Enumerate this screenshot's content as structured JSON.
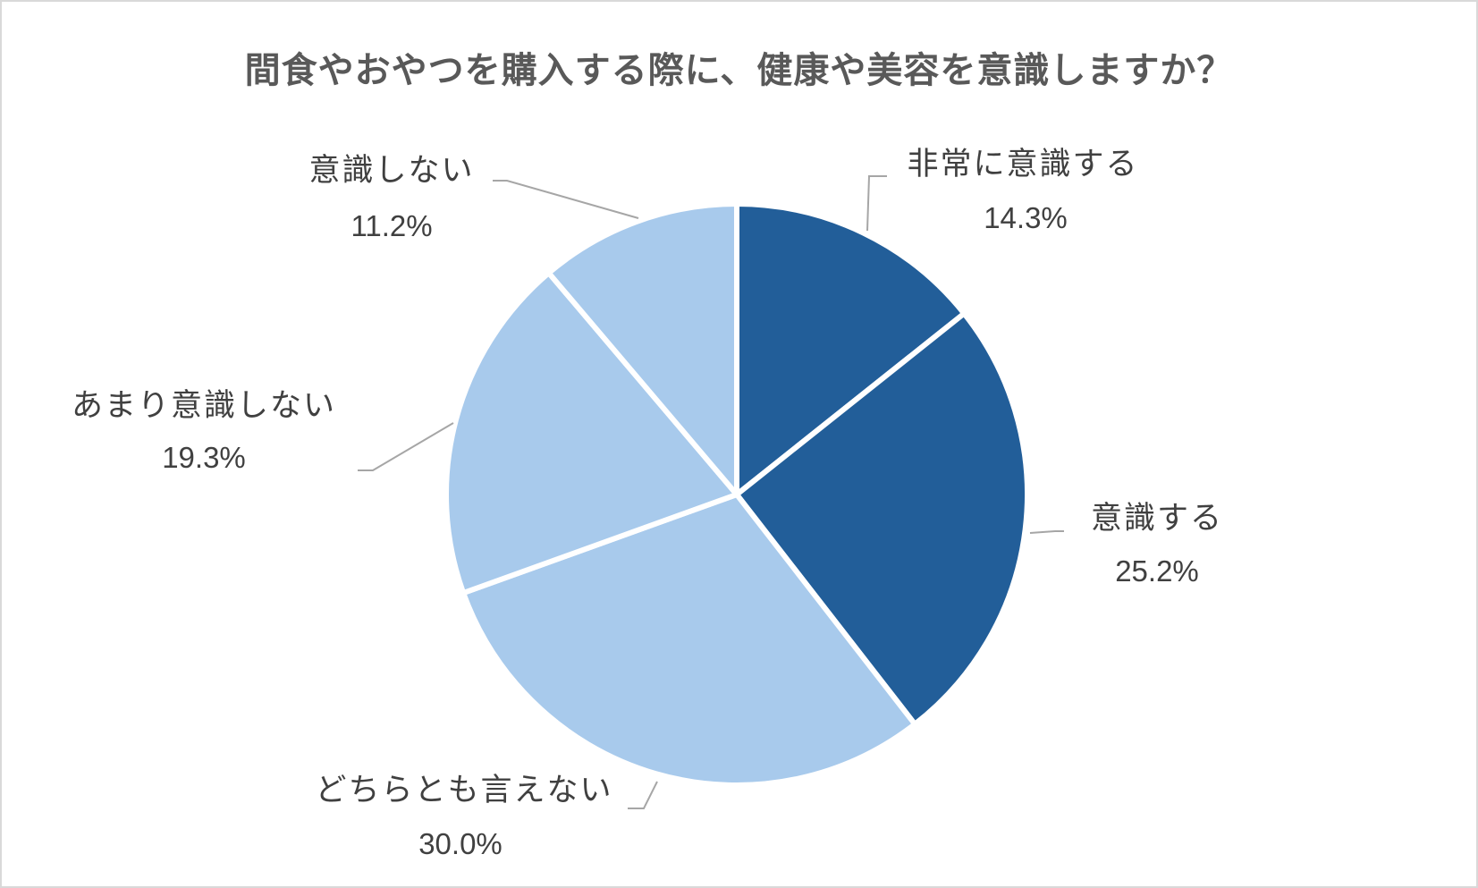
{
  "chart_data": {
    "type": "pie",
    "title": "間食やおやつを購入する際に、健康や美容を意識しますか？",
    "start_angle_deg": 0,
    "direction": "clockwise",
    "slices": [
      {
        "label": "非常に意識する",
        "value": 14.3,
        "value_label": "14.3%",
        "color": "#225e99"
      },
      {
        "label": "意識する",
        "value": 25.2,
        "value_label": "25.2%",
        "color": "#225e99"
      },
      {
        "label": "どちらとも言えない",
        "value": 30.0,
        "value_label": "30.0%",
        "color": "#a8caec"
      },
      {
        "label": "あまり意識しない",
        "value": 19.3,
        "value_label": "19.3%",
        "color": "#a8caec"
      },
      {
        "label": "意識しない",
        "value": 11.2,
        "value_label": "11.2%",
        "color": "#a8caec"
      }
    ],
    "legend": "none",
    "leader_line_color": "#a6a6a6"
  }
}
